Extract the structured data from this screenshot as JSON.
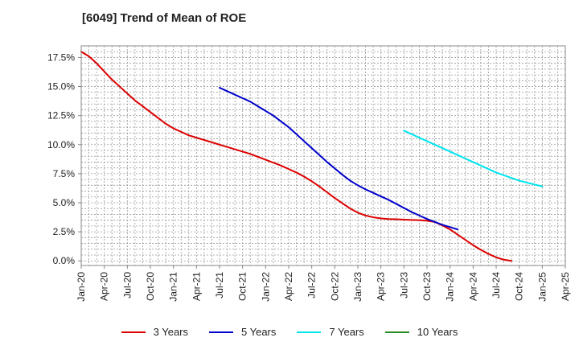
{
  "title": "[6049]  Trend of Mean of ROE",
  "chart_data": {
    "type": "line",
    "title": "[6049]  Trend of Mean of ROE",
    "xlabel": "",
    "ylabel": "",
    "x_tick_labels": [
      "Jan-20",
      "Apr-20",
      "Jul-20",
      "Oct-20",
      "Jan-21",
      "Apr-21",
      "Jul-21",
      "Oct-21",
      "Jan-22",
      "Apr-22",
      "Jul-22",
      "Oct-22",
      "Jan-23",
      "Apr-23",
      "Jul-23",
      "Oct-23",
      "Jan-24",
      "Apr-24",
      "Jul-24",
      "Oct-24",
      "Jan-25",
      "Apr-25"
    ],
    "y_tick_labels": [
      "0.0%",
      "2.5%",
      "5.0%",
      "7.5%",
      "10.0%",
      "12.5%",
      "15.0%",
      "17.5%"
    ],
    "ylim": [
      -0.4,
      18.5
    ],
    "y_unit": "%",
    "grid": true,
    "legend_position": "bottom",
    "series": [
      {
        "name": "3 Years",
        "color": "#dd0000",
        "points": [
          [
            "Jan-20",
            18.0
          ],
          [
            "Feb-20",
            17.6
          ],
          [
            "Mar-20",
            17.0
          ],
          [
            "Apr-20",
            16.3
          ],
          [
            "May-20",
            15.6
          ],
          [
            "Jun-20",
            15.0
          ],
          [
            "Jul-20",
            14.4
          ],
          [
            "Aug-20",
            13.8
          ],
          [
            "Sep-20",
            13.3
          ],
          [
            "Oct-20",
            12.8
          ],
          [
            "Nov-20",
            12.3
          ],
          [
            "Dec-20",
            11.8
          ],
          [
            "Jan-21",
            11.4
          ],
          [
            "Feb-21",
            11.1
          ],
          [
            "Mar-21",
            10.8
          ],
          [
            "Apr-21",
            10.6
          ],
          [
            "May-21",
            10.4
          ],
          [
            "Jun-21",
            10.2
          ],
          [
            "Jul-21",
            10.0
          ],
          [
            "Aug-21",
            9.8
          ],
          [
            "Sep-21",
            9.6
          ],
          [
            "Oct-21",
            9.4
          ],
          [
            "Nov-21",
            9.2
          ],
          [
            "Dec-21",
            8.95
          ],
          [
            "Jan-22",
            8.7
          ],
          [
            "Feb-22",
            8.45
          ],
          [
            "Mar-22",
            8.2
          ],
          [
            "Apr-22",
            7.9
          ],
          [
            "May-22",
            7.6
          ],
          [
            "Jun-22",
            7.25
          ],
          [
            "Jul-22",
            6.85
          ],
          [
            "Aug-22",
            6.4
          ],
          [
            "Sep-22",
            5.9
          ],
          [
            "Oct-22",
            5.4
          ],
          [
            "Nov-22",
            4.95
          ],
          [
            "Dec-22",
            4.5
          ],
          [
            "Jan-23",
            4.15
          ],
          [
            "Feb-23",
            3.9
          ],
          [
            "Mar-23",
            3.75
          ],
          [
            "Apr-23",
            3.65
          ],
          [
            "May-23",
            3.6
          ],
          [
            "Jun-23",
            3.58
          ],
          [
            "Jul-23",
            3.55
          ],
          [
            "Aug-23",
            3.52
          ],
          [
            "Sep-23",
            3.5
          ],
          [
            "Oct-23",
            3.45
          ],
          [
            "Nov-23",
            3.35
          ],
          [
            "Dec-23",
            3.05
          ],
          [
            "Jan-24",
            2.7
          ],
          [
            "Feb-24",
            2.25
          ],
          [
            "Mar-24",
            1.8
          ],
          [
            "Apr-24",
            1.35
          ],
          [
            "May-24",
            0.95
          ],
          [
            "Jun-24",
            0.6
          ],
          [
            "Jul-24",
            0.3
          ],
          [
            "Aug-24",
            0.1
          ],
          [
            "Sep-24",
            0.0
          ]
        ]
      },
      {
        "name": "5 Years",
        "color": "#0000cc",
        "points": [
          [
            "Jul-21",
            14.9
          ],
          [
            "Aug-21",
            14.6
          ],
          [
            "Sep-21",
            14.3
          ],
          [
            "Oct-21",
            14.0
          ],
          [
            "Nov-21",
            13.7
          ],
          [
            "Dec-21",
            13.3
          ],
          [
            "Jan-22",
            12.9
          ],
          [
            "Feb-22",
            12.5
          ],
          [
            "Mar-22",
            12.0
          ],
          [
            "Apr-22",
            11.5
          ],
          [
            "May-22",
            10.9
          ],
          [
            "Jun-22",
            10.3
          ],
          [
            "Jul-22",
            9.7
          ],
          [
            "Aug-22",
            9.1
          ],
          [
            "Sep-22",
            8.5
          ],
          [
            "Oct-22",
            7.95
          ],
          [
            "Nov-22",
            7.4
          ],
          [
            "Dec-22",
            6.9
          ],
          [
            "Jan-23",
            6.5
          ],
          [
            "Feb-23",
            6.15
          ],
          [
            "Mar-23",
            5.85
          ],
          [
            "Apr-23",
            5.55
          ],
          [
            "May-23",
            5.25
          ],
          [
            "Jun-23",
            4.9
          ],
          [
            "Jul-23",
            4.55
          ],
          [
            "Aug-23",
            4.2
          ],
          [
            "Sep-23",
            3.9
          ],
          [
            "Oct-23",
            3.6
          ],
          [
            "Nov-23",
            3.35
          ],
          [
            "Dec-23",
            3.1
          ],
          [
            "Jan-24",
            2.9
          ],
          [
            "Feb-24",
            2.7
          ]
        ]
      },
      {
        "name": "7 Years",
        "color": "#00e5ee",
        "points": [
          [
            "Jul-23",
            11.2
          ],
          [
            "Oct-23",
            10.3
          ],
          [
            "Jan-24",
            9.4
          ],
          [
            "Apr-24",
            8.5
          ],
          [
            "Jul-24",
            7.6
          ],
          [
            "Oct-24",
            6.9
          ],
          [
            "Jan-25",
            6.4
          ]
        ]
      },
      {
        "name": "10 Years",
        "color": "#228b22",
        "points": []
      }
    ]
  }
}
